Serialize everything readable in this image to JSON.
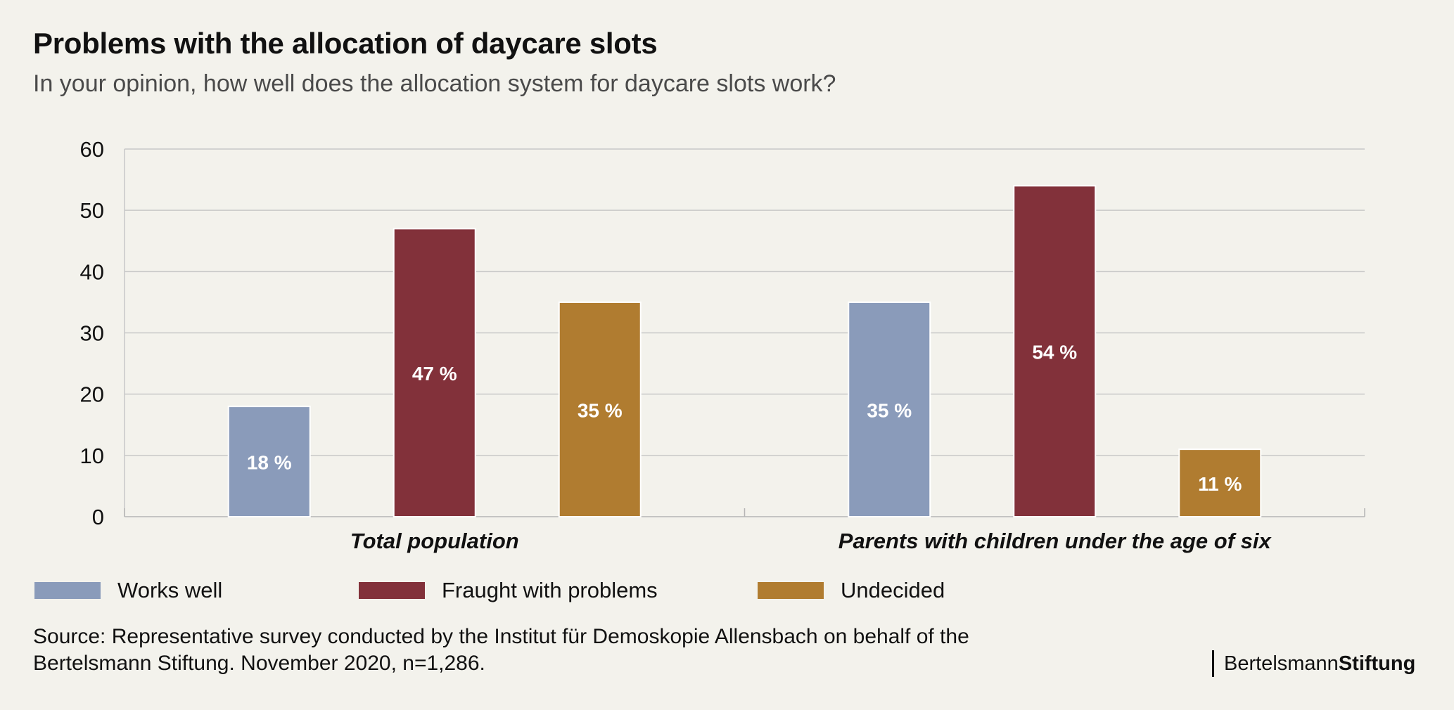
{
  "header": {
    "title": "Problems with the allocation of daycare slots",
    "subtitle": "In your opinion, how well does the allocation system for daycare slots work?"
  },
  "chart_data": {
    "type": "bar",
    "title": "Problems with the allocation of daycare slots",
    "subtitle": "In your opinion, how well does the allocation system for daycare slots work?",
    "categories": [
      "Total population",
      "Parents with children under the age of six"
    ],
    "series": [
      {
        "name": "Works well",
        "values": [
          18,
          35
        ],
        "labels": [
          "18 %",
          "35 %"
        ],
        "color": "#8a9bba"
      },
      {
        "name": "Fraught with problems",
        "values": [
          47,
          54
        ],
        "labels": [
          "47 %",
          "54 %"
        ],
        "color": "#82313a"
      },
      {
        "name": "Undecided",
        "values": [
          35,
          11
        ],
        "labels": [
          "35 %",
          "11 %"
        ],
        "color": "#b07c30"
      }
    ],
    "ylim": [
      0,
      60
    ],
    "yticks": [
      0,
      10,
      20,
      30,
      40,
      50,
      60
    ],
    "xlabel": "",
    "ylabel": "",
    "grid": true,
    "legend_position": "bottom"
  },
  "source": {
    "line1": "Source: Representative survey conducted by the Institut für Demoskopie Allensbach on behalf of the",
    "line2": "Bertelsmann Stiftung. November 2020, n=1,286."
  },
  "brand": {
    "part1": "Bertelsmann",
    "part2": "Stiftung"
  },
  "colors": {
    "background": "#f3f2ec",
    "grid": "#c8c8c8",
    "works_well": "#8a9bba",
    "fraught": "#82313a",
    "undecided": "#b07c30"
  }
}
